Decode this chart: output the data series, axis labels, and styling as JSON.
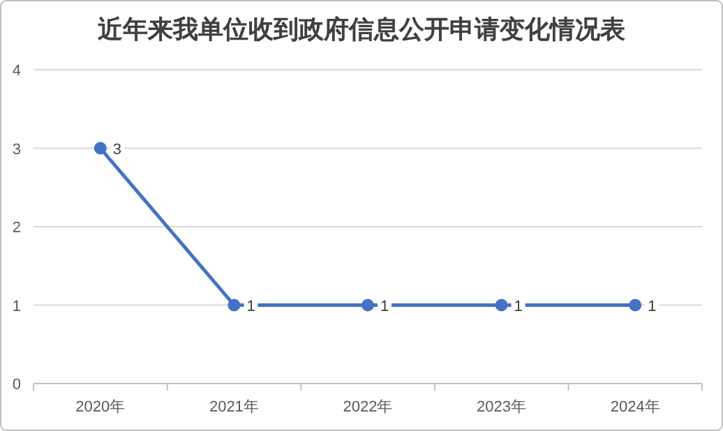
{
  "chart_data": {
    "type": "line",
    "title": "近年来我单位收到政府信息公开申请变化情况表",
    "categories": [
      "2020年",
      "2021年",
      "2022年",
      "2023年",
      "2024年"
    ],
    "values": [
      3,
      1,
      1,
      1,
      1
    ],
    "color": "#4472c4",
    "ylim": [
      0,
      4
    ],
    "yticks": [
      0,
      1,
      2,
      3,
      4
    ],
    "grid": "y",
    "marker": "circle",
    "line_style": "solid",
    "data_labels": true
  }
}
